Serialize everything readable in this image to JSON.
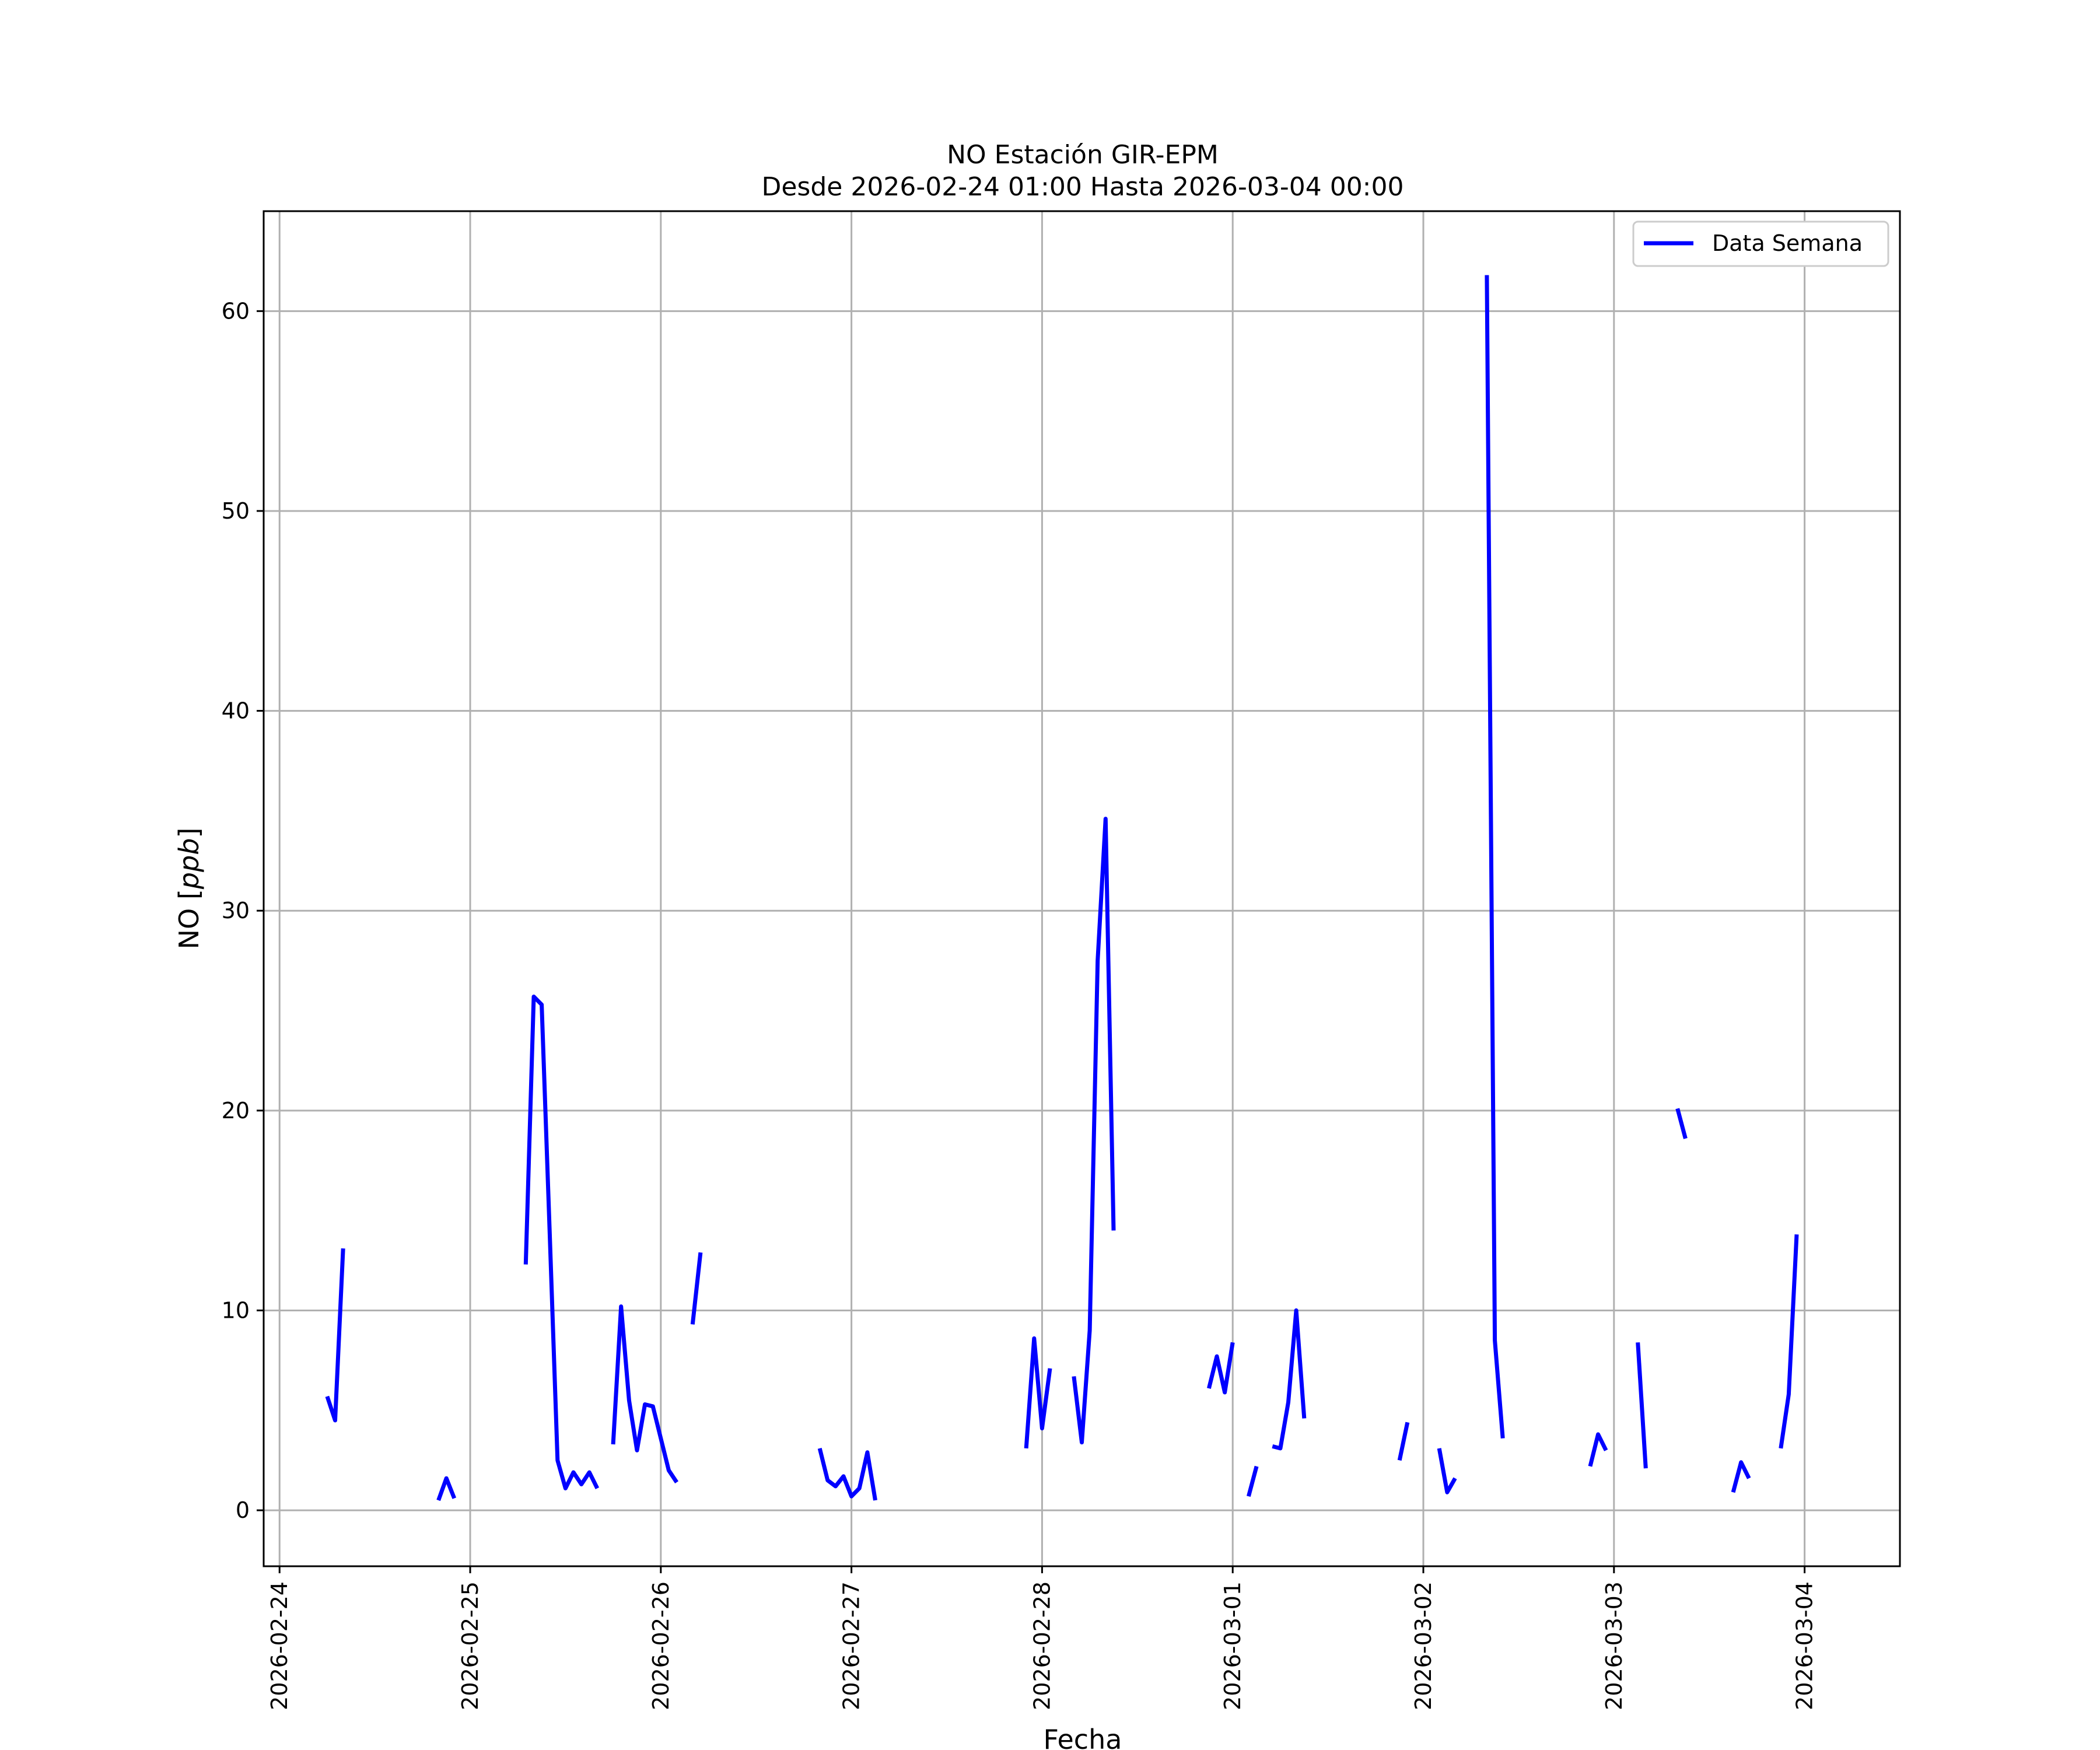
{
  "chart_data": {
    "type": "line",
    "title": "NO Estación GIR-EPM",
    "subtitle": "Desde 2026-02-24 01:00 Hasta 2026-03-04 00:00",
    "xlabel": "Fecha",
    "ylabel": "NO [ppb]",
    "xlim": [
      "2026-02-23 22:00",
      "2026-03-04 12:00"
    ],
    "ylim": [
      -2.8,
      65
    ],
    "x_ticks": [
      "2026-02-24",
      "2026-02-25",
      "2026-02-26",
      "2026-02-27",
      "2026-02-28",
      "2026-03-01",
      "2026-03-02",
      "2026-03-03",
      "2026-03-04"
    ],
    "y_ticks": [
      0,
      10,
      20,
      30,
      40,
      50,
      60
    ],
    "y_tick_labels": [
      "0",
      "10",
      "20",
      "30",
      "40",
      "50",
      "60"
    ],
    "grid": true,
    "legend_position": "top-right",
    "colors": {
      "line": "#0000ff",
      "grid": "#b0b0b0"
    },
    "series": [
      {
        "name": "Data Semana",
        "segments": [
          [
            [
              "2026-02-24 06:00",
              5.7
            ],
            [
              "2026-02-24 07:00",
              4.5
            ],
            [
              "2026-02-24 08:00",
              13.1
            ]
          ],
          [
            [
              "2026-02-24 20:00",
              0.5
            ],
            [
              "2026-02-24 21:00",
              1.6
            ],
            [
              "2026-02-24 22:00",
              0.6
            ]
          ],
          [
            [
              "2026-02-25 07:00",
              12.3
            ],
            [
              "2026-02-25 08:00",
              25.7
            ],
            [
              "2026-02-25 09:00",
              25.3
            ],
            [
              "2026-02-25 10:00",
              14.0
            ],
            [
              "2026-02-25 11:00",
              2.5
            ],
            [
              "2026-02-25 12:00",
              1.1
            ],
            [
              "2026-02-25 13:00",
              1.9
            ],
            [
              "2026-02-25 14:00",
              1.3
            ],
            [
              "2026-02-25 15:00",
              1.9
            ],
            [
              "2026-02-25 16:00",
              1.1
            ]
          ],
          [
            [
              "2026-02-25 18:00",
              3.3
            ],
            [
              "2026-02-25 19:00",
              10.2
            ],
            [
              "2026-02-25 20:00",
              5.5
            ],
            [
              "2026-02-25 21:00",
              3.0
            ],
            [
              "2026-02-25 22:00",
              5.3
            ],
            [
              "2026-02-25 23:00",
              5.2
            ],
            [
              "2026-02-26 00:00",
              3.6
            ],
            [
              "2026-02-26 01:00",
              2.0
            ],
            [
              "2026-02-26 02:00",
              1.4
            ]
          ],
          [
            [
              "2026-02-26 04:00",
              9.3
            ],
            [
              "2026-02-26 05:00",
              12.9
            ]
          ],
          [
            [
              "2026-02-26 20:00",
              3.1
            ],
            [
              "2026-02-26 21:00",
              1.5
            ],
            [
              "2026-02-26 22:00",
              1.2
            ],
            [
              "2026-02-26 23:00",
              1.7
            ],
            [
              "2026-02-27 00:00",
              0.7
            ],
            [
              "2026-02-27 01:00",
              1.1
            ],
            [
              "2026-02-27 02:00",
              2.9
            ],
            [
              "2026-02-27 03:00",
              0.5
            ]
          ],
          [
            [
              "2026-02-27 22:00",
              3.1
            ],
            [
              "2026-02-27 23:00",
              8.6
            ],
            [
              "2026-02-28 00:00",
              4.1
            ],
            [
              "2026-02-28 01:00",
              7.1
            ]
          ],
          [
            [
              "2026-02-28 04:00",
              6.7
            ],
            [
              "2026-02-28 05:00",
              3.4
            ],
            [
              "2026-02-28 06:00",
              9.0
            ],
            [
              "2026-02-28 07:00",
              27.5
            ],
            [
              "2026-02-28 08:00",
              34.6
            ],
            [
              "2026-02-28 09:00",
              14.0
            ]
          ],
          [
            [
              "2026-02-28 21:00",
              6.1
            ],
            [
              "2026-02-28 22:00",
              7.7
            ],
            [
              "2026-02-28 23:00",
              5.9
            ],
            [
              "2026-03-01 00:00",
              8.4
            ]
          ],
          [
            [
              "2026-03-01 02:00",
              0.7
            ],
            [
              "2026-03-01 03:00",
              2.2
            ]
          ],
          [
            [
              "2026-03-01 05:00",
              3.2
            ],
            [
              "2026-03-01 06:00",
              3.1
            ],
            [
              "2026-03-01 07:00",
              5.4
            ],
            [
              "2026-03-01 08:00",
              10.0
            ],
            [
              "2026-03-01 09:00",
              4.6
            ]
          ],
          [
            [
              "2026-03-01 21:00",
              2.5
            ],
            [
              "2026-03-01 22:00",
              4.4
            ]
          ],
          [
            [
              "2026-03-02 02:00",
              3.1
            ],
            [
              "2026-03-02 03:00",
              0.9
            ],
            [
              "2026-03-02 04:00",
              1.6
            ]
          ],
          [
            [
              "2026-03-02 08:00",
              61.8
            ],
            [
              "2026-03-02 09:00",
              8.5
            ],
            [
              "2026-03-02 10:00",
              3.6
            ]
          ],
          [
            [
              "2026-03-02 21:00",
              2.2
            ],
            [
              "2026-03-02 22:00",
              3.8
            ],
            [
              "2026-03-02 23:00",
              3.0
            ]
          ],
          [
            [
              "2026-03-03 03:00",
              8.4
            ],
            [
              "2026-03-03 04:00",
              2.1
            ]
          ],
          [
            [
              "2026-03-03 08:00",
              20.1
            ],
            [
              "2026-03-03 09:00",
              18.6
            ]
          ],
          [
            [
              "2026-03-03 15:00",
              0.9
            ],
            [
              "2026-03-03 16:00",
              2.4
            ],
            [
              "2026-03-03 17:00",
              1.6
            ]
          ],
          [
            [
              "2026-03-03 21:00",
              3.1
            ],
            [
              "2026-03-03 22:00",
              5.8
            ],
            [
              "2026-03-03 23:00",
              13.8
            ]
          ]
        ]
      }
    ]
  }
}
